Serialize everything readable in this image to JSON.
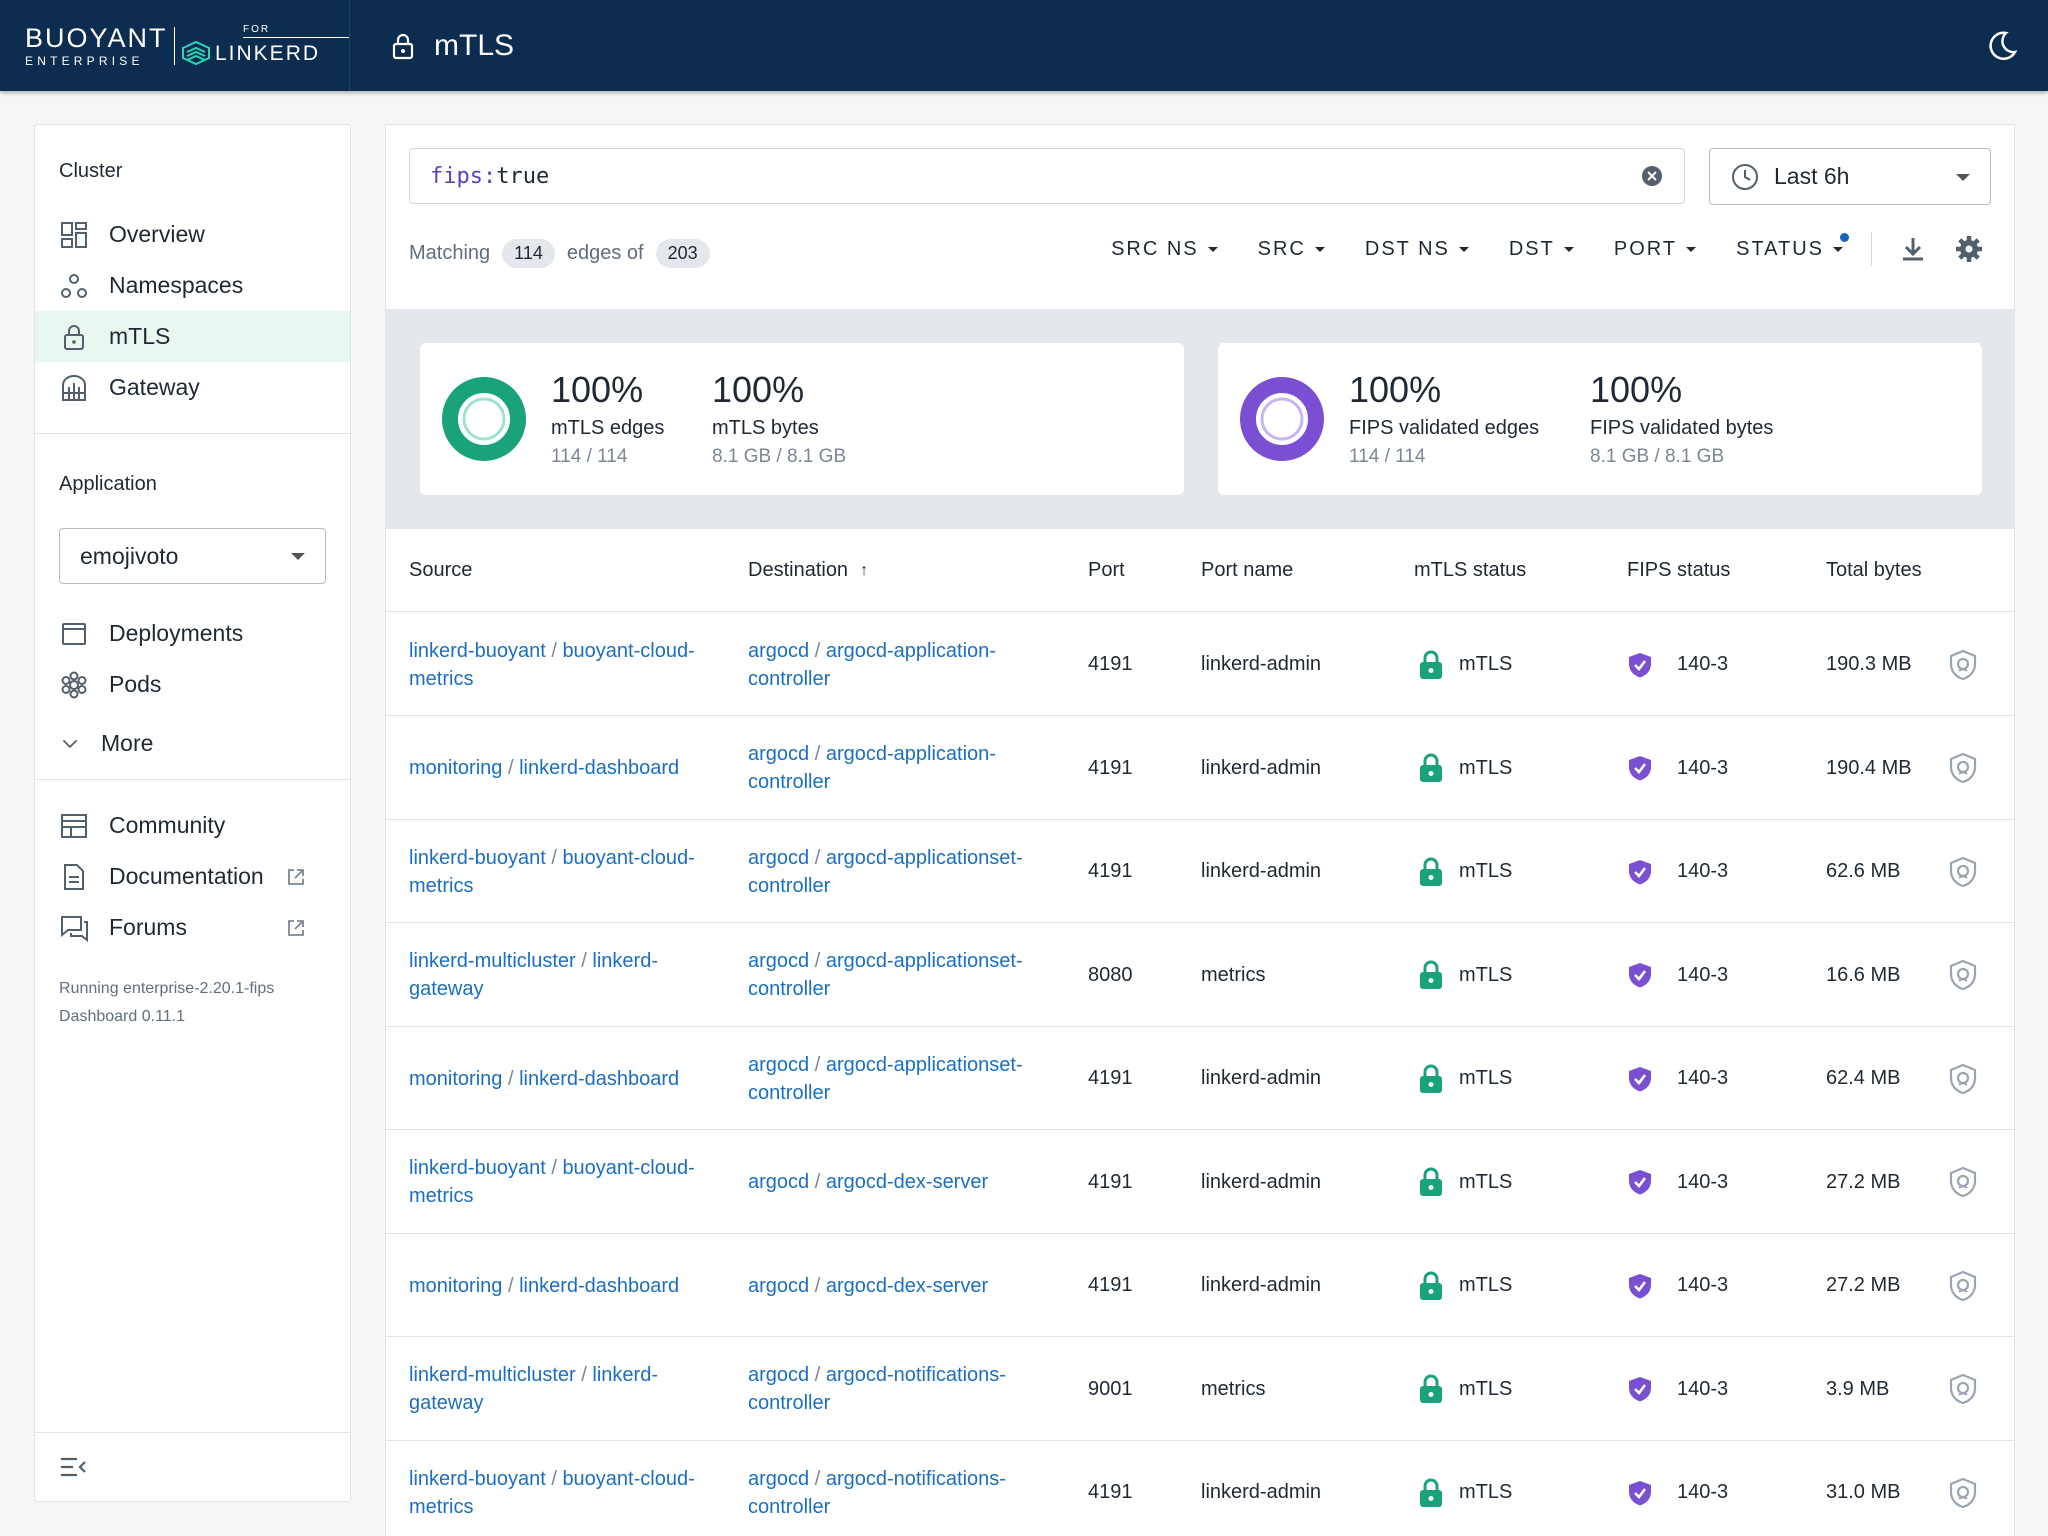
{
  "brand": {
    "word": "BUOYANT",
    "sub": "ENTERPRISE",
    "for": "FOR",
    "linkerd": "LINKERD"
  },
  "header": {
    "title": "mTLS"
  },
  "sidebar": {
    "cluster_title": "Cluster",
    "cluster_items": [
      {
        "label": "Overview",
        "icon": "overview-icon"
      },
      {
        "label": "Namespaces",
        "icon": "namespaces-icon"
      },
      {
        "label": "mTLS",
        "icon": "lock-icon"
      },
      {
        "label": "Gateway",
        "icon": "gateway-icon"
      }
    ],
    "application_title": "Application",
    "application_value": "emojivoto",
    "app_items": [
      {
        "label": "Deployments",
        "icon": "deployments-icon"
      },
      {
        "label": "Pods",
        "icon": "pods-icon"
      }
    ],
    "more_label": "More",
    "resources": [
      {
        "label": "Community",
        "icon": "community-icon"
      },
      {
        "label": "Documentation",
        "icon": "documentation-icon"
      },
      {
        "label": "Forums",
        "icon": "forums-icon"
      }
    ],
    "version_line1": "Running enterprise-2.20.1-fips",
    "version_line2": "Dashboard 0.11.1"
  },
  "search": {
    "key": "fips:",
    "value": "true"
  },
  "time_range": "Last 6h",
  "matching": {
    "prefix": "Matching",
    "count": "114",
    "middle": "edges of",
    "total": "203"
  },
  "filters": [
    "SRC NS",
    "SRC",
    "DST NS",
    "DST",
    "PORT",
    "STATUS"
  ],
  "summary": {
    "mtls_edges": {
      "value": "100%",
      "label": "mTLS edges",
      "sub": "114 / 114"
    },
    "mtls_bytes": {
      "value": "100%",
      "label": "mTLS bytes",
      "sub": "8.1 GB / 8.1 GB"
    },
    "fips_edges": {
      "value": "100%",
      "label": "FIPS validated edges",
      "sub": "114 / 114"
    },
    "fips_bytes": {
      "value": "100%",
      "label": "FIPS validated bytes",
      "sub": "8.1 GB / 8.1 GB"
    }
  },
  "table": {
    "headers": [
      "Source",
      "Destination",
      "Port",
      "Port name",
      "mTLS status",
      "FIPS status",
      "Total bytes"
    ],
    "sort_arrow": "↑",
    "rows": [
      {
        "src_ns": "linkerd-buoyant",
        "src": "buoyant-cloud-metrics",
        "dst_ns": "argocd",
        "dst": "argocd-application-controller",
        "port": "4191",
        "port_name": "linkerd-admin",
        "mtls": "mTLS",
        "fips": "140-3",
        "bytes": "190.3 MB"
      },
      {
        "src_ns": "monitoring",
        "src": "linkerd-dashboard",
        "dst_ns": "argocd",
        "dst": "argocd-application-controller",
        "port": "4191",
        "port_name": "linkerd-admin",
        "mtls": "mTLS",
        "fips": "140-3",
        "bytes": "190.4 MB"
      },
      {
        "src_ns": "linkerd-buoyant",
        "src": "buoyant-cloud-metrics",
        "dst_ns": "argocd",
        "dst": "argocd-applicationset-controller",
        "port": "4191",
        "port_name": "linkerd-admin",
        "mtls": "mTLS",
        "fips": "140-3",
        "bytes": "62.6 MB"
      },
      {
        "src_ns": "linkerd-multicluster",
        "src": "linkerd-gateway",
        "dst_ns": "argocd",
        "dst": "argocd-applicationset-controller",
        "port": "8080",
        "port_name": "metrics",
        "mtls": "mTLS",
        "fips": "140-3",
        "bytes": "16.6 MB"
      },
      {
        "src_ns": "monitoring",
        "src": "linkerd-dashboard",
        "dst_ns": "argocd",
        "dst": "argocd-applicationset-controller",
        "port": "4191",
        "port_name": "linkerd-admin",
        "mtls": "mTLS",
        "fips": "140-3",
        "bytes": "62.4 MB"
      },
      {
        "src_ns": "linkerd-buoyant",
        "src": "buoyant-cloud-metrics",
        "dst_ns": "argocd",
        "dst": "argocd-dex-server",
        "port": "4191",
        "port_name": "linkerd-admin",
        "mtls": "mTLS",
        "fips": "140-3",
        "bytes": "27.2 MB"
      },
      {
        "src_ns": "monitoring",
        "src": "linkerd-dashboard",
        "dst_ns": "argocd",
        "dst": "argocd-dex-server",
        "port": "4191",
        "port_name": "linkerd-admin",
        "mtls": "mTLS",
        "fips": "140-3",
        "bytes": "27.2 MB"
      },
      {
        "src_ns": "linkerd-multicluster",
        "src": "linkerd-gateway",
        "dst_ns": "argocd",
        "dst": "argocd-notifications-controller",
        "port": "9001",
        "port_name": "metrics",
        "mtls": "mTLS",
        "fips": "140-3",
        "bytes": "3.9 MB"
      },
      {
        "src_ns": "linkerd-buoyant",
        "src": "buoyant-cloud-metrics",
        "dst_ns": "argocd",
        "dst": "argocd-notifications-controller",
        "port": "4191",
        "port_name": "linkerd-admin",
        "mtls": "mTLS",
        "fips": "140-3",
        "bytes": "31.0 MB"
      }
    ]
  },
  "colors": {
    "topbar": "#0d2d50",
    "link": "#1b6fc2",
    "mtls_green": "#1aa37a",
    "fips_purple": "#7b4fd1",
    "active_bg": "#e8f7ef"
  }
}
